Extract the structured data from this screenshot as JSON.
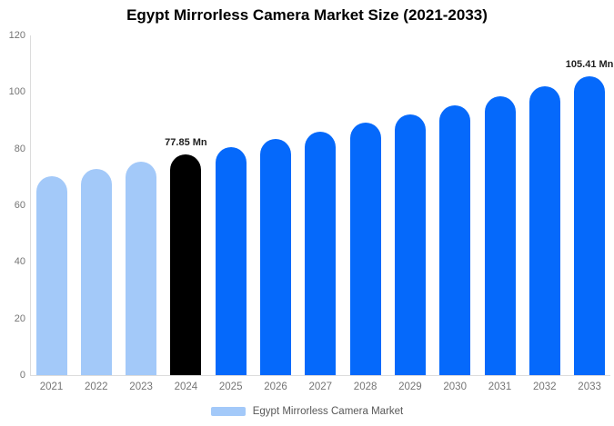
{
  "title": "Egypt Mirrorless Camera Market Size (2021-2033)",
  "chart_data": {
    "type": "bar",
    "title": "Egypt Mirrorless Camera Market Size (2021-2033)",
    "series_name": "Egypt Mirrorless Camera Market",
    "categories": [
      "2021",
      "2022",
      "2023",
      "2024",
      "2025",
      "2026",
      "2027",
      "2028",
      "2029",
      "2030",
      "2031",
      "2032",
      "2033"
    ],
    "values": [
      70.4,
      72.8,
      75.3,
      77.85,
      80.5,
      83.3,
      86.1,
      89.1,
      92.1,
      95.3,
      98.5,
      101.9,
      105.41
    ],
    "unit": "Mn",
    "value_labels": {
      "2024": "77.85 Mn",
      "2033": "105.41 Mn"
    },
    "ylim": [
      0,
      120
    ],
    "yticks": [
      0,
      20,
      40,
      60,
      80,
      100,
      120
    ],
    "xlabel": "",
    "ylabel": "",
    "grid": false,
    "legend_position": "bottom",
    "legend": [
      "Egypt Mirrorless Camera Market"
    ],
    "bar_colors": [
      "#A3C9F9",
      "#A3C9F9",
      "#A3C9F9",
      "#000000",
      "#0569FB",
      "#0569FB",
      "#0569FB",
      "#0569FB",
      "#0569FB",
      "#0569FB",
      "#0569FB",
      "#0569FB",
      "#0569FB"
    ]
  },
  "legend": {
    "label": "Egypt Mirrorless Camera Market",
    "swatch_color": "#A3C9F9"
  },
  "colors": {
    "background": "#FFFFFF",
    "title_text": "#000000",
    "axis_line": "#DCDCDC",
    "tick_label": "#757575",
    "value_label": "#1F1F1F",
    "legend_text": "#595959",
    "historical_bar": "#A3C9F9",
    "base_year_bar": "#000000",
    "forecast_bar": "#0569FB"
  }
}
